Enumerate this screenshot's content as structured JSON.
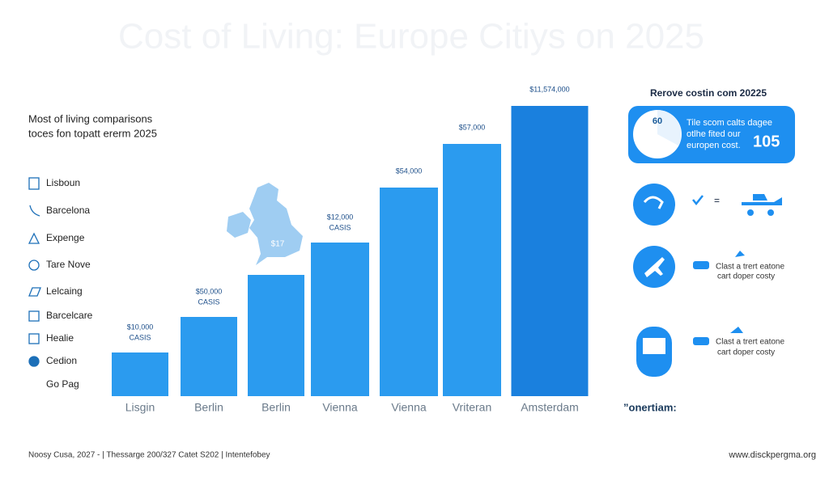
{
  "chart_data": {
    "type": "bar",
    "title": "Cost of Living: Europe Citiys on 2025",
    "subtitle": [
      "Most of living comparisons",
      "toces fon topatt ererm 2025"
    ],
    "categories": [
      "Lisgin",
      "Berlin",
      "Berlin",
      "Vienna",
      "Vienna",
      "Vriteran",
      "Amsterdam"
    ],
    "values": [
      54,
      98,
      150,
      190,
      258,
      312,
      359
    ],
    "annotations": [
      [
        "$10,000",
        "CASIS"
      ],
      [
        "$50,000",
        "CASIS"
      ],
      null,
      [
        "$12,000",
        "CASIS"
      ],
      [
        "$54,000"
      ],
      [
        "$57,000"
      ],
      [
        "$11,574,000"
      ]
    ],
    "colors": [
      "#2b9bef",
      "#2b9bef",
      "#2b9bef",
      "#2b9bef",
      "#2b9bef",
      "#2b9bef",
      "#1a80de"
    ],
    "ylim": [
      0,
      400
    ]
  },
  "map_label": "$17",
  "sidebar": [
    "Lisboun",
    "Barcelona",
    "Expenge",
    "Tare Nove",
    "Lelcaing",
    "Barcelcare",
    "Healie",
    "Cedion",
    "Go Pag"
  ],
  "panel": {
    "title": "Rerove costin com 20225",
    "badge": "60",
    "card_text": [
      "Tile scom calts  dagee",
      "otlhe fited our",
      "europen cost."
    ],
    "card_number": "105",
    "row1": "=",
    "row2": [
      "Clast a trert eatone",
      "cart doper costy"
    ],
    "row3": [
      "Clast a trert eatone",
      "cart doper costy"
    ],
    "footer": "”onertiam:"
  },
  "footer": {
    "left": "Noosy Cusa, 2027 - | Thessarge 200/327 Catet S202 | Intentefobey",
    "right": "www.disckpergma.org"
  }
}
